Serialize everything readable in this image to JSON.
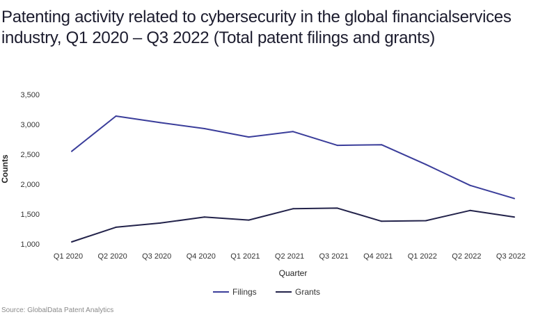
{
  "title": "Patenting activity related to cybersecurity in the global financialservices industry, Q1 2020 – Q3 2022 (Total patent filings and grants)",
  "source": "Source: GlobalData Patent Analytics",
  "chart_data": {
    "type": "line",
    "title": "Patenting activity related to cybersecurity in the global financialservices industry, Q1 2020 – Q3 2022 (Total patent filings and grants)",
    "xlabel": "Quarter",
    "ylabel": "Counts",
    "categories": [
      "Q1 2020",
      "Q2 2020",
      "Q3 2020",
      "Q4 2020",
      "Q1 2021",
      "Q2 2021",
      "Q3 2021",
      "Q4 2021",
      "Q1 2022",
      "Q2 2022",
      "Q3 2022"
    ],
    "ylim": [
      1000,
      3500
    ],
    "yticks": [
      1000,
      1500,
      2000,
      2500,
      3000,
      3500
    ],
    "ytick_labels": [
      "1,000",
      "1,500",
      "2,000",
      "2,500",
      "3,000",
      "3,500"
    ],
    "grid": false,
    "legend_position": "bottom-center",
    "series": [
      {
        "name": "Filings",
        "color": "#3a3d9a",
        "values": [
          2550,
          3140,
          3030,
          2930,
          2790,
          2880,
          2650,
          2660,
          2330,
          1980,
          1760
        ]
      },
      {
        "name": "Grants",
        "color": "#22224a",
        "values": [
          1035,
          1280,
          1350,
          1450,
          1400,
          1590,
          1600,
          1380,
          1390,
          1560,
          1450
        ]
      }
    ]
  }
}
